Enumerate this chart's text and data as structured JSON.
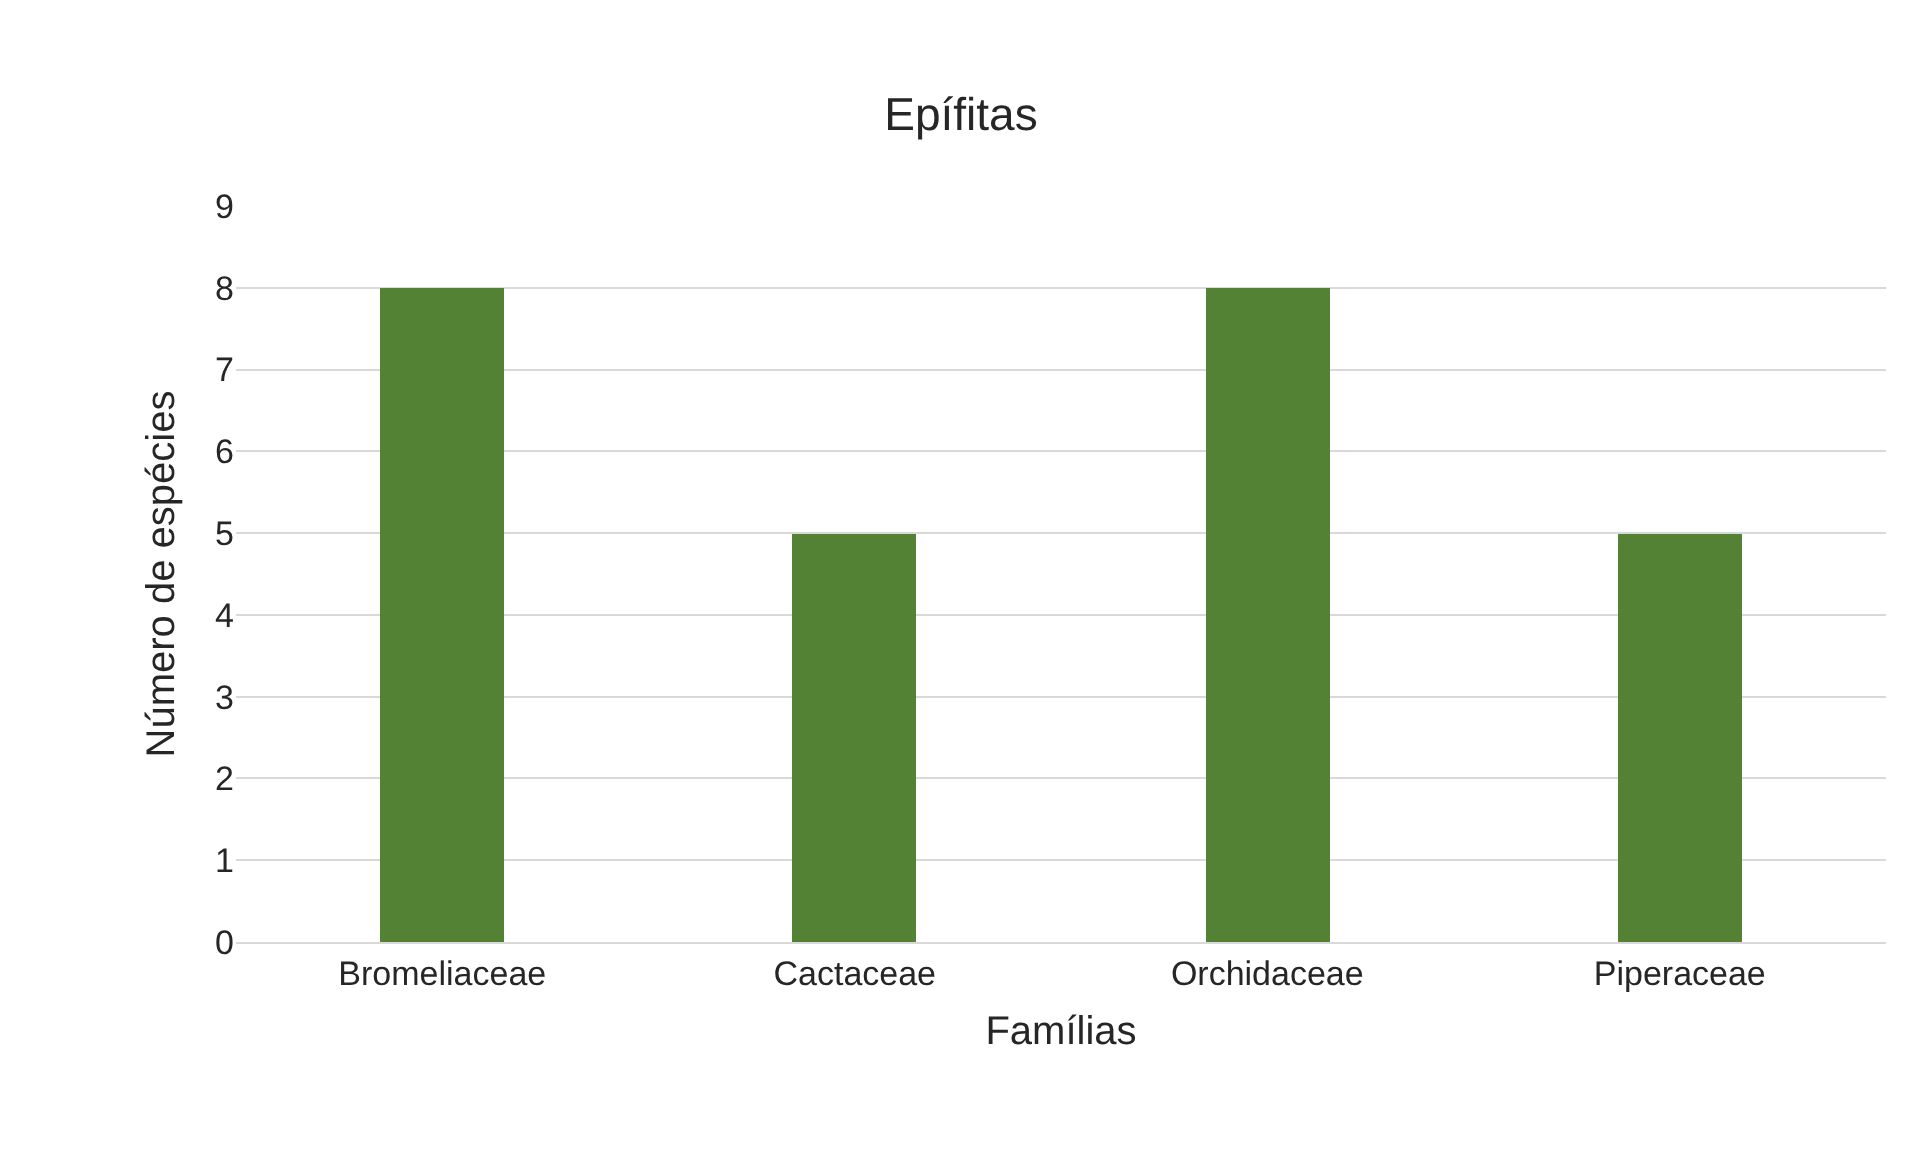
{
  "chart_data": {
    "type": "bar",
    "title": "Epífitas",
    "xlabel": "Famílias",
    "ylabel": "Número de espécies",
    "categories": [
      "Bromeliaceae",
      "Cactaceae",
      "Orchidaceae",
      "Piperaceae"
    ],
    "values": [
      8,
      5,
      8,
      5
    ],
    "color": "#548235",
    "ylim": [
      0,
      9
    ],
    "yticks": [
      0,
      1,
      2,
      3,
      4,
      5,
      6,
      7,
      8,
      9
    ],
    "grid": "y"
  }
}
